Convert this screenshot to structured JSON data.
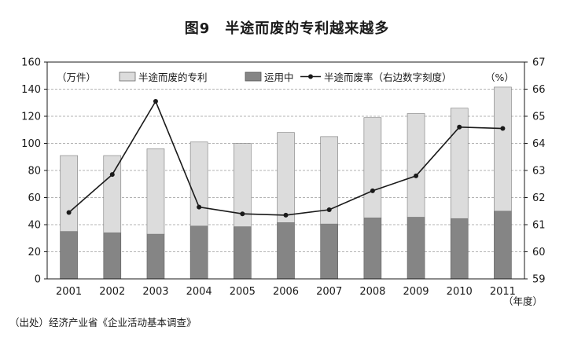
{
  "figure": {
    "title": "图9　半途而废的专利越来越多",
    "source": "（出处）经济产业省《企业活动基本调查》"
  },
  "chart_data": {
    "type": "bar",
    "stacked": true,
    "categories": [
      "2001",
      "2002",
      "2003",
      "2004",
      "2005",
      "2006",
      "2007",
      "2008",
      "2009",
      "2010",
      "2011"
    ],
    "series": [
      {
        "name": "运用中",
        "type": "bar",
        "axis": "left",
        "color": "#858585",
        "values": [
          35,
          34,
          33,
          39,
          38.5,
          41.5,
          40.5,
          45,
          45.5,
          44.5,
          50
        ]
      },
      {
        "name": "半途而废的专利",
        "type": "bar",
        "axis": "left",
        "color": "#dcdcdc",
        "values": [
          56,
          57,
          63,
          62,
          61.5,
          66.5,
          64.5,
          74,
          76.5,
          81.5,
          91.5
        ]
      },
      {
        "name": "半途而废率（右边数字刻度）",
        "type": "line",
        "axis": "right",
        "color": "#1a1a1a",
        "values": [
          61.45,
          62.85,
          65.55,
          61.65,
          61.4,
          61.35,
          61.55,
          62.25,
          62.8,
          64.6,
          64.55
        ]
      }
    ],
    "left_axis": {
      "unit": "（万件）",
      "ylim": [
        0,
        160
      ],
      "ticks": [
        "0",
        "20",
        "40",
        "60",
        "80",
        "100",
        "120",
        "140",
        "160"
      ]
    },
    "right_axis": {
      "unit": "（%）",
      "ylim": [
        59,
        67
      ],
      "ticks": [
        "59",
        "60",
        "61",
        "62",
        "63",
        "64",
        "65",
        "66",
        "67"
      ]
    },
    "x_axis": {
      "unit": "（年度）"
    },
    "grid": "horizontal-dashed",
    "legend_position": "top"
  }
}
